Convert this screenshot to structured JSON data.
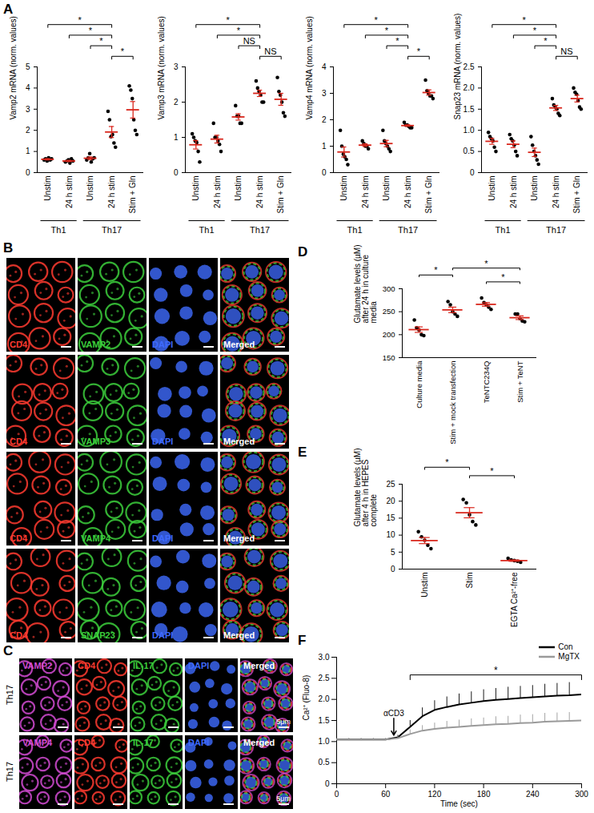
{
  "chart_data": [
    {
      "panel": "A",
      "type": "scatter",
      "ylabel": "Vamp2 mRNA (norm. values)",
      "categories": [
        "Unstim",
        "24 h stim",
        "Unstim",
        "24 h stim",
        "Stim + Gln"
      ],
      "groups": [
        {
          "label": "Th1",
          "from": 0,
          "to": 1
        },
        {
          "label": "Th17",
          "from": 2,
          "to": 4
        }
      ],
      "values": [
        [
          0.6,
          0.65,
          0.55,
          0.7,
          0.6,
          0.65
        ],
        [
          0.5,
          0.55,
          0.6,
          0.45,
          0.65,
          0.55
        ],
        [
          0.6,
          0.7,
          0.9,
          0.5,
          0.65,
          0.7
        ],
        [
          2.9,
          2.5,
          1.7,
          1.8,
          1.4,
          1.2
        ],
        [
          4.1,
          3.9,
          3.5,
          2.5,
          2.0,
          1.8
        ]
      ],
      "means": [
        0.63,
        0.55,
        0.68,
        1.92,
        2.97
      ],
      "errors": [
        0.03,
        0.03,
        0.06,
        0.26,
        0.39
      ],
      "ylim": [
        0,
        5
      ],
      "yticks": [
        0,
        1,
        2,
        3,
        4,
        5
      ],
      "significance": [
        {
          "from": 0,
          "to": 3,
          "label": "*"
        },
        {
          "from": 1,
          "to": 3,
          "label": "*"
        },
        {
          "from": 2,
          "to": 3,
          "label": "*"
        },
        {
          "from": 3,
          "to": 4,
          "label": "*"
        }
      ]
    },
    {
      "panel": "A",
      "type": "scatter",
      "ylabel": "Vamp3 mRNA (norm. values)",
      "categories": [
        "Unstim",
        "24 h stim",
        "Unstim",
        "24 h stim",
        "Stim + Gln"
      ],
      "groups": [
        {
          "label": "Th1",
          "from": 0,
          "to": 1
        },
        {
          "label": "Th17",
          "from": 2,
          "to": 4
        }
      ],
      "values": [
        [
          1.1,
          1.0,
          0.9,
          0.85,
          0.6,
          0.3
        ],
        [
          1.4,
          1.0,
          1.0,
          0.9,
          0.8,
          0.6
        ],
        [
          1.9,
          1.6,
          1.6,
          1.4,
          1.4
        ],
        [
          2.6,
          2.4,
          2.3,
          2.2,
          2.0,
          2.0
        ],
        [
          2.7,
          2.3,
          2.2,
          2.0,
          1.7,
          1.6
        ]
      ],
      "means": [
        0.79,
        0.95,
        1.58,
        2.25,
        2.08
      ],
      "errors": [
        0.12,
        0.11,
        0.09,
        0.09,
        0.17
      ],
      "ylim": [
        0,
        3
      ],
      "yticks": [
        0,
        1,
        2,
        3
      ],
      "significance": [
        {
          "from": 0,
          "to": 3,
          "label": "*"
        },
        {
          "from": 1,
          "to": 3,
          "label": "*"
        },
        {
          "from": 2,
          "to": 3,
          "label": "NS"
        },
        {
          "from": 3,
          "to": 4,
          "label": "NS"
        }
      ]
    },
    {
      "panel": "A",
      "type": "scatter",
      "ylabel": "Vamp4 mRNA (norm. values)",
      "categories": [
        "Unstim",
        "24 h stim",
        "Unstim",
        "24 h stim",
        "Stim + Gln"
      ],
      "groups": [
        {
          "label": "Th1",
          "from": 0,
          "to": 1
        },
        {
          "label": "Th17",
          "from": 2,
          "to": 4
        }
      ],
      "values": [
        [
          1.6,
          1.0,
          0.7,
          0.6,
          0.5,
          0.3
        ],
        [
          1.2,
          1.1,
          1.0,
          1.0,
          0.9
        ],
        [
          1.6,
          1.2,
          1.1,
          1.0,
          0.9,
          0.8
        ],
        [
          1.9,
          1.8,
          1.8,
          1.75,
          1.7,
          1.7
        ],
        [
          3.5,
          3.1,
          3.0,
          2.9,
          2.9,
          2.8
        ]
      ],
      "means": [
        0.78,
        1.04,
        1.1,
        1.78,
        3.03
      ],
      "errors": [
        0.19,
        0.05,
        0.12,
        0.03,
        0.1
      ],
      "ylim": [
        0,
        4
      ],
      "yticks": [
        0,
        1,
        2,
        3,
        4
      ],
      "significance": [
        {
          "from": 0,
          "to": 3,
          "label": "*"
        },
        {
          "from": 1,
          "to": 3,
          "label": "*"
        },
        {
          "from": 2,
          "to": 3,
          "label": "*"
        },
        {
          "from": 3,
          "to": 4,
          "label": "*"
        }
      ]
    },
    {
      "panel": "A",
      "type": "scatter",
      "ylabel": "Snap23 mRNA (norm. values)",
      "categories": [
        "Unstim",
        "24 h stim",
        "Unstim",
        "24 h stim",
        "Stim + Gln"
      ],
      "groups": [
        {
          "label": "Th1",
          "from": 0,
          "to": 1
        },
        {
          "label": "Th17",
          "from": 2,
          "to": 4
        }
      ],
      "values": [
        [
          0.95,
          0.85,
          0.8,
          0.75,
          0.6,
          0.5
        ],
        [
          0.9,
          0.8,
          0.75,
          0.65,
          0.5,
          0.4
        ],
        [
          0.85,
          0.65,
          0.5,
          0.4,
          0.3,
          0.2
        ],
        [
          1.75,
          1.6,
          1.55,
          1.5,
          1.4,
          1.35
        ],
        [
          2.0,
          1.9,
          1.85,
          1.7,
          1.55,
          1.5
        ]
      ],
      "means": [
        0.74,
        0.67,
        0.48,
        1.53,
        1.75
      ],
      "errors": [
        0.07,
        0.08,
        0.1,
        0.06,
        0.08
      ],
      "ylim": [
        0,
        2.5
      ],
      "yticks": [
        0,
        0.5,
        {
          "value": 1,
          "label": "1.0"
        },
        1.5,
        {
          "value": 2,
          "label": "2.0"
        },
        2.5
      ],
      "significance": [
        {
          "from": 0,
          "to": 3,
          "label": "*"
        },
        {
          "from": 1,
          "to": 3,
          "label": "*"
        },
        {
          "from": 2,
          "to": 3,
          "label": "*"
        },
        {
          "from": 3,
          "to": 4,
          "label": "NS"
        }
      ]
    },
    {
      "panel": "D",
      "type": "scatter",
      "ylabel": "Glutamate levels (µM) after 24 h in culture media",
      "categories": [
        "Culture media",
        "Stim + mock transfection",
        "TeNTC234Q",
        "Stim + TeNT"
      ],
      "values": [
        [
          232,
          215,
          210,
          200,
          198
        ],
        [
          272,
          265,
          250,
          245,
          240
        ],
        [
          280,
          270,
          265,
          260,
          255
        ],
        [
          245,
          245,
          235,
          230,
          228
        ]
      ],
      "means": [
        211,
        254,
        266,
        237
      ],
      "errors": [
        6,
        6,
        4,
        4
      ],
      "ylim": [
        150,
        300
      ],
      "yticks": [
        150,
        200,
        250,
        300
      ],
      "significance": [
        {
          "from": 1,
          "to": 3,
          "label": "*"
        },
        {
          "from": 0,
          "to": 1,
          "label": "*"
        },
        {
          "from": 2,
          "to": 3,
          "label": "*"
        }
      ]
    },
    {
      "panel": "E",
      "type": "scatter",
      "ylabel": "Glutamate levels (µM) after 4 h in HEPES complete",
      "categories": [
        "Unstim",
        "Stim",
        "EGTA Ca²⁺-free"
      ],
      "values": [
        [
          11,
          9.5,
          8.5,
          7,
          6
        ],
        [
          20.5,
          19.5,
          16,
          14,
          13
        ],
        [
          3.2,
          2.7,
          2.5,
          2.3,
          2.0
        ]
      ],
      "means": [
        8.4,
        16.6,
        2.5
      ],
      "errors": [
        0.9,
        1.5,
        0.2
      ],
      "ylim": [
        0,
        25
      ],
      "yticks": [
        0,
        5,
        10,
        15,
        20,
        25
      ],
      "significance": [
        {
          "from": 0,
          "to": 1,
          "label": "*"
        },
        {
          "from": 1,
          "to": 2,
          "label": "*"
        }
      ]
    },
    {
      "panel": "F",
      "type": "line",
      "xlabel": "Time (sec)",
      "ylabel": "Ca²⁺ (Fluo-8)",
      "x": [
        0,
        15,
        30,
        45,
        60,
        75,
        90,
        105,
        120,
        135,
        150,
        165,
        180,
        195,
        210,
        225,
        240,
        255,
        270,
        285,
        300
      ],
      "series": [
        {
          "name": "Con",
          "color": "#000000",
          "values": [
            1.05,
            1.05,
            1.05,
            1.05,
            1.05,
            1.1,
            1.35,
            1.6,
            1.75,
            1.82,
            1.88,
            1.92,
            1.96,
            1.99,
            2.01,
            2.03,
            2.05,
            2.07,
            2.09,
            2.1,
            2.12
          ],
          "errors": [
            0.02,
            0.02,
            0.02,
            0.02,
            0.02,
            0.05,
            0.15,
            0.2,
            0.22,
            0.24,
            0.25,
            0.26,
            0.27,
            0.27,
            0.28,
            0.28,
            0.28,
            0.29,
            0.29,
            0.3,
            0.3
          ]
        },
        {
          "name": "MgTX",
          "color": "#9a9a9a",
          "values": [
            1.05,
            1.05,
            1.05,
            1.05,
            1.05,
            1.08,
            1.18,
            1.26,
            1.3,
            1.33,
            1.35,
            1.37,
            1.39,
            1.41,
            1.42,
            1.44,
            1.45,
            1.47,
            1.48,
            1.49,
            1.5
          ],
          "errors": [
            0.02,
            0.02,
            0.02,
            0.02,
            0.02,
            0.05,
            0.1,
            0.12,
            0.14,
            0.15,
            0.16,
            0.17,
            0.17,
            0.18,
            0.18,
            0.19,
            0.19,
            0.2,
            0.2,
            0.2,
            0.2
          ]
        }
      ],
      "xlim": [
        0,
        300
      ],
      "xticks": [
        0,
        60,
        120,
        180,
        240,
        300
      ],
      "ylim": [
        0,
        3
      ],
      "yticks": [
        0,
        0.5,
        {
          "value": 1,
          "label": "1.0"
        },
        1.5,
        {
          "value": 2,
          "label": "2.0"
        },
        2.5,
        {
          "value": 3,
          "label": "3.0"
        }
      ],
      "legend": "top-right",
      "annotations": [
        {
          "text": "αCD3",
          "x": 70,
          "y": 1.55,
          "target_y": 1.15
        }
      ],
      "significance": [
        {
          "from": 90,
          "to": 300,
          "label": "*"
        }
      ]
    }
  ],
  "image_panels": [
    {
      "panel": "B",
      "rows": [
        [
          {
            "label": "CD4",
            "color": "#ff3b30"
          },
          {
            "label": "VAMP2",
            "color": "#3ccf3c"
          },
          {
            "label": "DAPI",
            "color": "#3f6bff"
          },
          {
            "label": "Merged",
            "color": "#ffffff"
          }
        ],
        [
          {
            "label": "CD4",
            "color": "#ff3b30"
          },
          {
            "label": "VAMP3",
            "color": "#3ccf3c"
          },
          {
            "label": "DAPI",
            "color": "#3f6bff"
          },
          {
            "label": "Merged",
            "color": "#ffffff"
          }
        ],
        [
          {
            "label": "CD4",
            "color": "#ff3b30"
          },
          {
            "label": "VAMP4",
            "color": "#3ccf3c"
          },
          {
            "label": "DAPI",
            "color": "#3f6bff"
          },
          {
            "label": "Merged",
            "color": "#ffffff"
          }
        ],
        [
          {
            "label": "CD4",
            "color": "#ff3b30"
          },
          {
            "label": "SNAP23",
            "color": "#3ccf3c"
          },
          {
            "label": "DAPI",
            "color": "#3f6bff"
          },
          {
            "label": "Merged",
            "color": "#ffffff"
          }
        ]
      ]
    },
    {
      "panel": "C",
      "row_labels": [
        "Th17",
        "Th17"
      ],
      "scale_label": "5μm",
      "rows": [
        [
          {
            "label": "VAMP2",
            "color": "#d24bd2"
          },
          {
            "label": "CD4",
            "color": "#ff3b30"
          },
          {
            "label": "IL-17",
            "color": "#3ccf3c"
          },
          {
            "label": "DAPI",
            "color": "#3f6bff"
          },
          {
            "label": "Merged",
            "color": "#ffffff"
          }
        ],
        [
          {
            "label": "VAMP4",
            "color": "#d24bd2"
          },
          {
            "label": "CD4",
            "color": "#ff3b30"
          },
          {
            "label": "IL-17",
            "color": "#3ccf3c"
          },
          {
            "label": "DAPI",
            "color": "#3f6bff"
          },
          {
            "label": "Merged",
            "color": "#ffffff"
          }
        ]
      ]
    }
  ]
}
